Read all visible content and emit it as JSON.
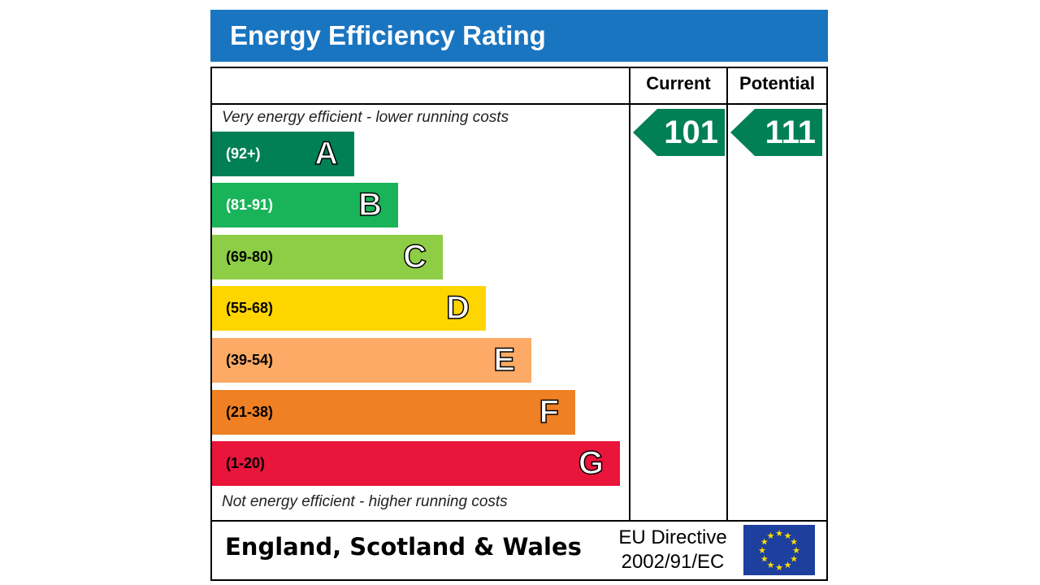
{
  "chart_data": {
    "type": "bar",
    "title": "Energy Efficiency Rating",
    "top_note": "Very energy efficient - lower running costs",
    "bottom_note": "Not energy efficient - higher running costs",
    "bands": [
      {
        "letter": "A",
        "range": "(92+)",
        "color": "#008054",
        "text_color": "#ffffff",
        "min": 92
      },
      {
        "letter": "B",
        "range": "(81-91)",
        "color": "#19b459",
        "text_color": "#ffffff",
        "min": 81
      },
      {
        "letter": "C",
        "range": "(69-80)",
        "color": "#8dce46",
        "text_color": "#000000",
        "min": 69
      },
      {
        "letter": "D",
        "range": "(55-68)",
        "color": "#ffd500",
        "text_color": "#000000",
        "min": 55
      },
      {
        "letter": "E",
        "range": "(39-54)",
        "color": "#fcaa65",
        "text_color": "#000000",
        "min": 39
      },
      {
        "letter": "F",
        "range": "(21-38)",
        "color": "#ef8023",
        "text_color": "#000000",
        "min": 21
      },
      {
        "letter": "G",
        "range": "(1-20)",
        "color": "#e9153b",
        "text_color": "#000000",
        "min": 1
      }
    ],
    "columns": [
      {
        "label": "Current",
        "value": "101",
        "color": "#008054"
      },
      {
        "label": "Potential",
        "value": "111",
        "color": "#008054"
      }
    ]
  },
  "footer": {
    "region": "England, Scotland & Wales",
    "directive_line1": "EU Directive",
    "directive_line2": "2002/91/EC"
  }
}
